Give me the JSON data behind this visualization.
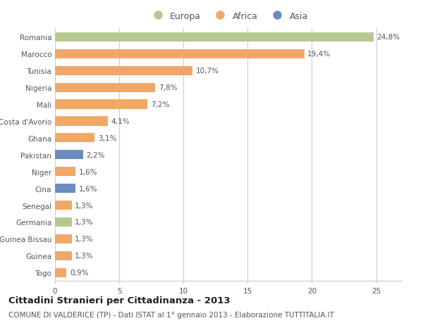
{
  "categories": [
    "Romania",
    "Marocco",
    "Tunisia",
    "Nigeria",
    "Mali",
    "Costa d'Avorio",
    "Ghana",
    "Pakistan",
    "Niger",
    "Cina",
    "Senegal",
    "Germania",
    "Guinea Bissau",
    "Guinea",
    "Togo"
  ],
  "values": [
    24.8,
    19.4,
    10.7,
    7.8,
    7.2,
    4.1,
    3.1,
    2.2,
    1.6,
    1.6,
    1.3,
    1.3,
    1.3,
    1.3,
    0.9
  ],
  "labels": [
    "24,8%",
    "19,4%",
    "10,7%",
    "7,8%",
    "7,2%",
    "4,1%",
    "3,1%",
    "2,2%",
    "1,6%",
    "1,6%",
    "1,3%",
    "1,3%",
    "1,3%",
    "1,3%",
    "0,9%"
  ],
  "continent": [
    "Europa",
    "Africa",
    "Africa",
    "Africa",
    "Africa",
    "Africa",
    "Africa",
    "Asia",
    "Africa",
    "Asia",
    "Africa",
    "Europa",
    "Africa",
    "Africa",
    "Africa"
  ],
  "color_europa": "#b5c98e",
  "color_africa": "#f0a868",
  "color_asia": "#6b8cbf",
  "legend_labels": [
    "Europa",
    "Africa",
    "Asia"
  ],
  "title": "Cittadini Stranieri per Cittadinanza - 2013",
  "subtitle": "COMUNE DI VALDERICE (TP) - Dati ISTAT al 1° gennaio 2013 - Elaborazione TUTTITALIA.IT",
  "xlim": [
    0,
    27
  ],
  "xticks": [
    0,
    5,
    10,
    15,
    20,
    25
  ],
  "background_color": "#ffffff",
  "grid_color": "#cccccc",
  "bar_height": 0.55,
  "label_fontsize": 7.5,
  "tick_fontsize": 7.5,
  "title_fontsize": 9.5,
  "subtitle_fontsize": 7.5
}
